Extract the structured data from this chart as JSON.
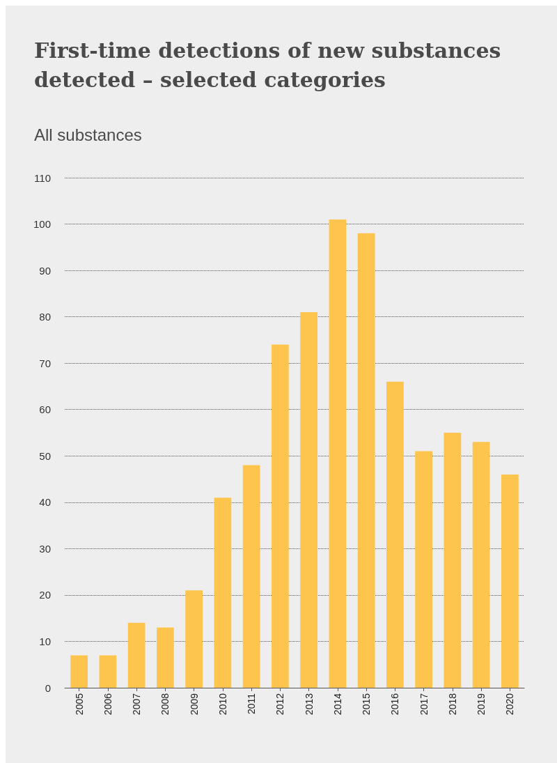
{
  "chart_data": {
    "type": "bar",
    "title": "First-time detections of new substances detected – selected categories",
    "subtitle": "All substances",
    "categories": [
      "2005",
      "2006",
      "2007",
      "2008",
      "2009",
      "2010",
      "2011",
      "2012",
      "2013",
      "2014",
      "2015",
      "2016",
      "2017",
      "2018",
      "2019",
      "2020"
    ],
    "values": [
      7,
      7,
      14,
      13,
      21,
      41,
      48,
      74,
      81,
      101,
      98,
      66,
      51,
      55,
      53,
      46
    ],
    "color": "#fdc54e",
    "ylim": [
      0,
      110
    ],
    "yticks": [
      0,
      10,
      20,
      30,
      40,
      50,
      60,
      70,
      80,
      90,
      100,
      110
    ],
    "grid": "y"
  }
}
